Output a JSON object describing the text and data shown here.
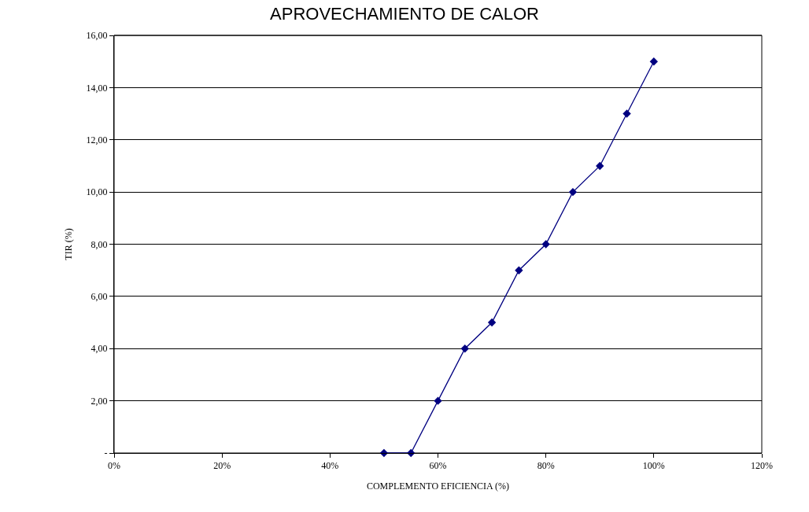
{
  "chart_data": {
    "type": "line",
    "title": "APROVECHAMIENTO DE CALOR",
    "xlabel": "COMPLEMENTO EFICIENCIA (%)",
    "ylabel": "TIR (%)",
    "x": [
      50,
      55,
      60,
      65,
      70,
      75,
      80,
      85,
      90,
      95,
      100
    ],
    "series": [
      {
        "color": "#000080",
        "values": [
          0,
          0,
          2,
          4,
          5,
          7,
          8,
          10,
          11,
          13,
          15
        ]
      }
    ],
    "xlim": [
      0,
      120
    ],
    "xticks": [
      {
        "value": 0,
        "label": "0%"
      },
      {
        "value": 20,
        "label": "20%"
      },
      {
        "value": 40,
        "label": "40%"
      },
      {
        "value": 60,
        "label": "60%"
      },
      {
        "value": 80,
        "label": "80%"
      },
      {
        "value": 100,
        "label": "100%"
      },
      {
        "value": 120,
        "label": "120%"
      }
    ],
    "ylim": [
      0,
      16
    ],
    "yticks": [
      {
        "value": 0,
        "label": "-"
      },
      {
        "value": 2,
        "label": "2,00"
      },
      {
        "value": 4,
        "label": "4,00"
      },
      {
        "value": 6,
        "label": "6,00"
      },
      {
        "value": 8,
        "label": "8,00"
      },
      {
        "value": 10,
        "label": "10,00"
      },
      {
        "value": 12,
        "label": "12,00"
      },
      {
        "value": 14,
        "label": "14,00"
      },
      {
        "value": 16,
        "label": "16,00"
      }
    ],
    "grid": "y",
    "marker": "diamond",
    "line_style": "solid",
    "legend": false
  }
}
